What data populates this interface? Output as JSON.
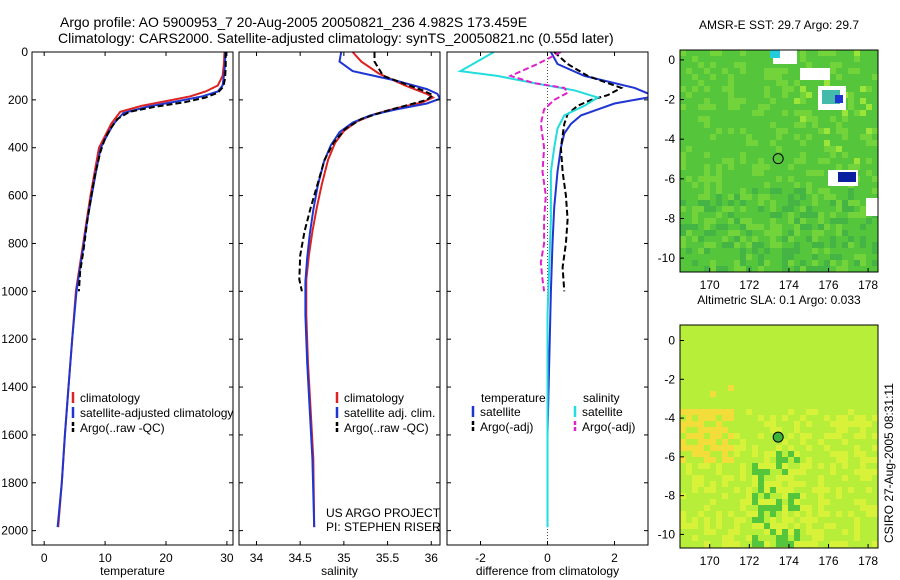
{
  "figure": {
    "title_line1": "Argo profile: AO 5900953_7 20-Aug-2005 20050821_236 4.982S 173.459E",
    "title_line2": "Climatology: CARS2000. Satellite-adjusted climatology: synTS_20050821.nc (0.55d later)",
    "credit_line1": "US ARGO PROJECT",
    "credit_line2": "PI: STEPHEN RISER",
    "stamp": "CSIRO 27-Aug-2005 08:31:11"
  },
  "chart_data": [
    {
      "id": "temp",
      "type": "line",
      "xlabel": "temperature",
      "ylabel": "",
      "xlim": [
        -2,
        31
      ],
      "ylim": [
        2060,
        0
      ],
      "xticks": [
        0,
        10,
        20,
        30
      ],
      "yticks": [
        0,
        200,
        400,
        600,
        800,
        1000,
        1200,
        1400,
        1600,
        1800,
        2000
      ],
      "show_yticklabels": true,
      "legend": {
        "placement": "lower-left",
        "entries": [
          "climatology",
          "satellite-adjusted climatology",
          "Argo(..raw -QC)"
        ]
      },
      "series": [
        {
          "name": "climatology",
          "color": "#dd2222",
          "style": "solid",
          "width": 2,
          "points": [
            [
              29.6,
              0
            ],
            [
              29.5,
              50
            ],
            [
              29.3,
              100
            ],
            [
              28.5,
              140
            ],
            [
              26.5,
              165
            ],
            [
              24,
              185
            ],
            [
              20,
              205
            ],
            [
              16,
              225
            ],
            [
              12.5,
              250
            ],
            [
              11,
              300
            ],
            [
              10,
              350
            ],
            [
              9,
              400
            ],
            [
              8.3,
              500
            ],
            [
              7.6,
              600
            ],
            [
              7,
              700
            ],
            [
              6.4,
              800
            ],
            [
              5.8,
              900
            ],
            [
              5.2,
              1000
            ],
            [
              4.6,
              1200
            ],
            [
              4,
              1400
            ],
            [
              3.4,
              1600
            ],
            [
              2.9,
              1800
            ],
            [
              2.3,
              1985
            ]
          ]
        },
        {
          "name": "satellite-adjusted climatology",
          "color": "#1f35d1",
          "style": "solid",
          "width": 2,
          "points": [
            [
              29.7,
              0
            ],
            [
              29.7,
              50
            ],
            [
              29.5,
              100
            ],
            [
              29.3,
              140
            ],
            [
              28.5,
              165
            ],
            [
              26,
              185
            ],
            [
              22,
              205
            ],
            [
              17,
              228
            ],
            [
              13,
              255
            ],
            [
              11.4,
              300
            ],
            [
              10.3,
              350
            ],
            [
              9.3,
              400
            ],
            [
              8.5,
              500
            ],
            [
              7.8,
              600
            ],
            [
              7.1,
              700
            ],
            [
              6.5,
              800
            ],
            [
              5.9,
              900
            ],
            [
              5.3,
              1000
            ],
            [
              4.6,
              1200
            ],
            [
              4,
              1400
            ],
            [
              3.4,
              1600
            ],
            [
              2.9,
              1800
            ],
            [
              2.2,
              1985
            ]
          ]
        },
        {
          "name": "Argo(..raw -QC)",
          "color": "#000000",
          "style": "dashed",
          "width": 2,
          "points": [
            [
              29.8,
              0
            ],
            [
              29.8,
              60
            ],
            [
              29.7,
              110
            ],
            [
              29.4,
              145
            ],
            [
              28.5,
              170
            ],
            [
              26.5,
              190
            ],
            [
              23,
              210
            ],
            [
              18,
              230
            ],
            [
              14,
              250
            ],
            [
              12,
              280
            ],
            [
              10.9,
              320
            ],
            [
              10,
              360
            ],
            [
              9.2,
              420
            ],
            [
              8.3,
              520
            ],
            [
              7.6,
              620
            ],
            [
              7,
              720
            ],
            [
              6.5,
              820
            ],
            [
              5.9,
              920
            ],
            [
              5.7,
              1000
            ]
          ]
        }
      ]
    },
    {
      "id": "sal",
      "type": "line",
      "xlabel": "salinity",
      "ylabel": "",
      "xlim": [
        33.8,
        36.1
      ],
      "ylim": [
        2060,
        0
      ],
      "xticks": [
        34,
        34.5,
        35,
        35.5,
        36
      ],
      "yticks": [
        0,
        200,
        400,
        600,
        800,
        1000,
        1200,
        1400,
        1600,
        1800,
        2000
      ],
      "show_yticklabels": false,
      "legend": {
        "placement": "lower-center",
        "entries": [
          "climatology",
          "satellite adj. clim.",
          "Argo(..raw -QC)"
        ]
      },
      "series": [
        {
          "name": "climatology",
          "color": "#dd2222",
          "style": "solid",
          "width": 2,
          "points": [
            [
              35.1,
              0
            ],
            [
              35.2,
              40
            ],
            [
              35.4,
              90
            ],
            [
              35.7,
              140
            ],
            [
              35.95,
              175
            ],
            [
              36.02,
              190
            ],
            [
              35.9,
              210
            ],
            [
              35.6,
              235
            ],
            [
              35.35,
              260
            ],
            [
              35.15,
              290
            ],
            [
              35,
              330
            ],
            [
              34.9,
              380
            ],
            [
              34.82,
              450
            ],
            [
              34.75,
              550
            ],
            [
              34.69,
              650
            ],
            [
              34.64,
              750
            ],
            [
              34.6,
              850
            ],
            [
              34.57,
              950
            ],
            [
              34.57,
              1100
            ],
            [
              34.59,
              1300
            ],
            [
              34.62,
              1500
            ],
            [
              34.65,
              1700
            ],
            [
              34.66,
              1985
            ]
          ]
        },
        {
          "name": "satellite adj. clim.",
          "color": "#1f35d1",
          "style": "solid",
          "width": 2,
          "points": [
            [
              34.97,
              0
            ],
            [
              34.95,
              40
            ],
            [
              35.1,
              80
            ],
            [
              35.6,
              120
            ],
            [
              35.95,
              155
            ],
            [
              36.07,
              175
            ],
            [
              36.1,
              195
            ],
            [
              35.95,
              215
            ],
            [
              35.6,
              240
            ],
            [
              35.3,
              265
            ],
            [
              35.1,
              295
            ],
            [
              34.95,
              335
            ],
            [
              34.85,
              390
            ],
            [
              34.77,
              460
            ],
            [
              34.7,
              560
            ],
            [
              34.65,
              660
            ],
            [
              34.61,
              760
            ],
            [
              34.58,
              860
            ],
            [
              34.56,
              960
            ],
            [
              34.56,
              1100
            ],
            [
              34.58,
              1300
            ],
            [
              34.61,
              1500
            ],
            [
              34.64,
              1700
            ],
            [
              34.66,
              1985
            ]
          ]
        },
        {
          "name": "Argo(..raw -QC)",
          "color": "#000000",
          "style": "dashed",
          "width": 2,
          "points": [
            [
              35.35,
              0
            ],
            [
              35.35,
              40
            ],
            [
              35.45,
              100
            ],
            [
              35.75,
              140
            ],
            [
              35.9,
              160
            ],
            [
              36.02,
              180
            ],
            [
              35.95,
              200
            ],
            [
              35.7,
              225
            ],
            [
              35.45,
              250
            ],
            [
              35.2,
              280
            ],
            [
              35.02,
              320
            ],
            [
              34.88,
              380
            ],
            [
              34.78,
              450
            ],
            [
              34.7,
              550
            ],
            [
              34.62,
              650
            ],
            [
              34.55,
              750
            ],
            [
              34.5,
              850
            ],
            [
              34.49,
              950
            ],
            [
              34.52,
              1000
            ]
          ]
        }
      ]
    },
    {
      "id": "diff",
      "type": "line",
      "xlabel": "difference from climatology",
      "ylabel": "",
      "xlim": [
        -3,
        3
      ],
      "ylim": [
        2060,
        0
      ],
      "xticks": [
        -2,
        0,
        2
      ],
      "yticks": [
        0,
        200,
        400,
        600,
        800,
        1000,
        1200,
        1400,
        1600,
        1800,
        2000
      ],
      "show_yticklabels": false,
      "zero_line": true,
      "legend": {
        "placement": "lower-center",
        "temperature_title": "temperature",
        "salinity_title": "salinity",
        "entries": [
          "satellite",
          "Argo(-adj)",
          "satellite",
          "Argo(-adj)"
        ]
      },
      "series": [
        {
          "name": "temperature satellite",
          "color": "#1f35d1",
          "style": "solid",
          "width": 2,
          "points": [
            [
              0.1,
              0
            ],
            [
              0.3,
              50
            ],
            [
              1.1,
              100
            ],
            [
              2.6,
              150
            ],
            [
              3.2,
              185
            ],
            [
              2,
              215
            ],
            [
              1.5,
              240
            ],
            [
              1,
              265
            ],
            [
              0.7,
              300
            ],
            [
              0.5,
              340
            ],
            [
              0.4,
              400
            ],
            [
              0.3,
              500
            ],
            [
              0.2,
              650
            ],
            [
              0.15,
              800
            ],
            [
              0.1,
              1000
            ],
            [
              0.05,
              1300
            ],
            [
              0,
              1600
            ],
            [
              0,
              1985
            ]
          ]
        },
        {
          "name": "temperature Argo(-adj)",
          "color": "#000000",
          "style": "dashed",
          "width": 2,
          "points": [
            [
              0.2,
              0
            ],
            [
              0.6,
              50
            ],
            [
              1.2,
              100
            ],
            [
              2.2,
              150
            ],
            [
              1.8,
              180
            ],
            [
              1.3,
              200
            ],
            [
              0.9,
              225
            ],
            [
              0.6,
              260
            ],
            [
              0.5,
              300
            ],
            [
              0.45,
              350
            ],
            [
              0.4,
              400
            ],
            [
              0.45,
              500
            ],
            [
              0.55,
              600
            ],
            [
              0.6,
              700
            ],
            [
              0.55,
              800
            ],
            [
              0.45,
              900
            ],
            [
              0.5,
              1000
            ]
          ]
        },
        {
          "name": "salinity satellite",
          "color": "#22dddd",
          "style": "solid",
          "width": 2,
          "points": [
            [
              -1.6,
              0
            ],
            [
              -2.1,
              40
            ],
            [
              -2.6,
              80
            ],
            [
              -1.5,
              100
            ],
            [
              -0.4,
              130
            ],
            [
              0.8,
              160
            ],
            [
              1.5,
              190
            ],
            [
              1.1,
              225
            ],
            [
              0.5,
              265
            ],
            [
              0.3,
              320
            ],
            [
              0.2,
              400
            ],
            [
              0.1,
              500
            ],
            [
              0.1,
              700
            ],
            [
              0.05,
              900
            ],
            [
              0,
              1100
            ],
            [
              0,
              1985
            ]
          ]
        },
        {
          "name": "salinity Argo(-adj)",
          "color": "#dd22cc",
          "style": "dashed",
          "width": 2,
          "points": [
            [
              0.4,
              0
            ],
            [
              -0.3,
              50
            ],
            [
              -1.1,
              100
            ],
            [
              -0.4,
              130
            ],
            [
              0.5,
              150
            ],
            [
              0.6,
              170
            ],
            [
              0.2,
              200
            ],
            [
              -0.1,
              240
            ],
            [
              -0.2,
              300
            ],
            [
              -0.1,
              400
            ],
            [
              -0.15,
              500
            ],
            [
              -0.05,
              600
            ],
            [
              -0.1,
              700
            ],
            [
              -0.1,
              800
            ],
            [
              -0.2,
              880
            ],
            [
              -0.15,
              950
            ],
            [
              -0.1,
              1000
            ]
          ]
        }
      ]
    },
    {
      "id": "sst",
      "type": "heatmap",
      "title": "AMSR-E SST: 29.7 Argo: 29.7",
      "xlim": [
        168.5,
        178.5
      ],
      "ylim": [
        -10.7,
        0.5
      ],
      "xticks": [
        170,
        172,
        174,
        176,
        178
      ],
      "yticks": [
        0,
        -2,
        -4,
        -6,
        -8,
        -10
      ],
      "marker": {
        "lon": 173.459,
        "lat": -4.982,
        "fill": "none"
      },
      "colors": [
        "#55c63c",
        "#72d33a",
        "#9be53a",
        "#44b545"
      ]
    },
    {
      "id": "sla",
      "type": "heatmap",
      "title": "Altimetric SLA: 0.1 Argo: 0.033",
      "xlim": [
        168.5,
        178.5
      ],
      "ylim": [
        -10.7,
        0.8
      ],
      "xticks": [
        170,
        172,
        174,
        176,
        178
      ],
      "yticks": [
        0,
        -2,
        -4,
        -6,
        -8,
        -10
      ],
      "marker": {
        "lon": 173.459,
        "lat": -4.982,
        "fill": "#3cb43c"
      },
      "colors": [
        "#b7ee3a",
        "#d8f23a",
        "#f3dd3a",
        "#55c63c"
      ]
    }
  ]
}
